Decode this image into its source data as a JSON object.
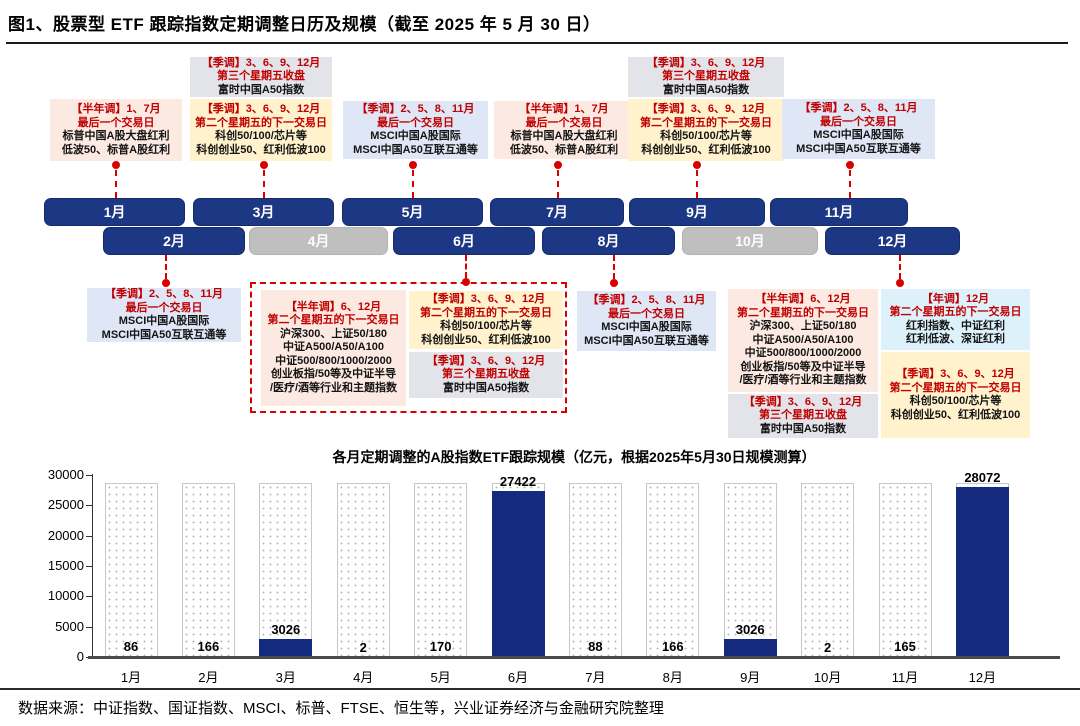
{
  "title": "图1、股票型 ETF 跟踪指数定期调整日历及规模（截至 2025 年 5 月 30 日）",
  "footer": {
    "source_text": "数据来源：中证指数、国证指数、MSCI、标普、FTSE、恒生等，兴业证券经济与金融研究院整理"
  },
  "colors": {
    "navy_month": "#1c3783",
    "navy_bar": "#132a7e",
    "dimmed_month": "#bfbfbf",
    "red_accent": "#d90000",
    "red_text": "#c00000",
    "palette": {
      "pink": "#fceae2",
      "yellow": "#fff2cc",
      "blue": "#dfe6f6",
      "gray": "#e3e4ea",
      "cyan": "#ddf1fb"
    }
  },
  "timeline": {
    "months": [
      {
        "label": "1月",
        "dimmed": false
      },
      {
        "label": "2月",
        "dimmed": false
      },
      {
        "label": "3月",
        "dimmed": false
      },
      {
        "label": "4月",
        "dimmed": true
      },
      {
        "label": "5月",
        "dimmed": false
      },
      {
        "label": "6月",
        "dimmed": false
      },
      {
        "label": "7月",
        "dimmed": false
      },
      {
        "label": "8月",
        "dimmed": false
      },
      {
        "label": "9月",
        "dimmed": false
      },
      {
        "label": "10月",
        "dimmed": true
      },
      {
        "label": "11月",
        "dimmed": false
      },
      {
        "label": "12月",
        "dimmed": false
      }
    ]
  },
  "callouts": [
    {
      "id": "pink-1",
      "palette": "pink",
      "lines": [
        {
          "text": "【半年调】1、7月",
          "red": true
        },
        {
          "text": "最后一个交易日",
          "red": true
        },
        {
          "text": "标普中国A股大盘红利",
          "red": false
        },
        {
          "text": "低波50、标普A股红利",
          "red": false
        }
      ]
    },
    {
      "id": "gray-3",
      "palette": "gray",
      "lines": [
        {
          "text": "【季调】3、6、9、12月",
          "red": true
        },
        {
          "text": "第三个星期五收盘",
          "red": true
        },
        {
          "text": "富时中国A50指数",
          "red": false
        }
      ]
    },
    {
      "id": "yellow-3",
      "palette": "yellow",
      "lines": [
        {
          "text": "【季调】3、6、9、12月",
          "red": true
        },
        {
          "text": "第二个星期五的下一交易日",
          "red": true
        },
        {
          "text": "科创50/100/芯片等",
          "red": false
        },
        {
          "text": "科创创业50、红利低波100",
          "red": false
        }
      ]
    },
    {
      "id": "blue-5",
      "palette": "blue",
      "lines": [
        {
          "text": "【季调】2、5、8、11月",
          "red": true
        },
        {
          "text": "最后一个交易日",
          "red": true
        },
        {
          "text": "MSCI中国A股国际",
          "red": false
        },
        {
          "text": "MSCI中国A50互联互通等",
          "red": false
        }
      ]
    },
    {
      "id": "pink-7",
      "palette": "pink",
      "lines": [
        {
          "text": "【半年调】1、7月",
          "red": true
        },
        {
          "text": "最后一个交易日",
          "red": true
        },
        {
          "text": "标普中国A股大盘红利",
          "red": false
        },
        {
          "text": "低波50、标普A股红利",
          "red": false
        }
      ]
    },
    {
      "id": "gray-9",
      "palette": "gray",
      "lines": [
        {
          "text": "【季调】3、6、9、12月",
          "red": true
        },
        {
          "text": "第三个星期五收盘",
          "red": true
        },
        {
          "text": "富时中国A50指数",
          "red": false
        }
      ]
    },
    {
      "id": "yellow-9",
      "palette": "yellow",
      "lines": [
        {
          "text": "【季调】3、6、9、12月",
          "red": true
        },
        {
          "text": "第二个星期五的下一交易日",
          "red": true
        },
        {
          "text": "科创50/100/芯片等",
          "red": false
        },
        {
          "text": "科创创业50、红利低波100",
          "red": false
        }
      ]
    },
    {
      "id": "blue-11",
      "palette": "blue",
      "lines": [
        {
          "text": "【季调】2、5、8、11月",
          "red": true
        },
        {
          "text": "最后一个交易日",
          "red": true
        },
        {
          "text": "MSCI中国A股国际",
          "red": false
        },
        {
          "text": "MSCI中国A50互联互通等",
          "red": false
        }
      ]
    },
    {
      "id": "blue-2",
      "palette": "blue",
      "lines": [
        {
          "text": "【季调】2、5、8、11月",
          "red": true
        },
        {
          "text": "最后一个交易日",
          "red": true
        },
        {
          "text": "MSCI中国A股国际",
          "red": false
        },
        {
          "text": "MSCI中国A50互联互通等",
          "red": false
        }
      ]
    },
    {
      "id": "pink-6",
      "palette": "pink",
      "lines": [
        {
          "text": "【半年调】6、12月",
          "red": true
        },
        {
          "text": "第二个星期五的下一交易日",
          "red": true
        },
        {
          "text": "沪深300、上证50/180",
          "red": false
        },
        {
          "text": "中证A500/A50/A100",
          "red": false
        },
        {
          "text": "中证500/800/1000/2000",
          "red": false
        },
        {
          "text": "创业板指/50等及中证半导",
          "red": false
        },
        {
          "text": "/医疗/酒等行业和主题指数",
          "red": false
        }
      ]
    },
    {
      "id": "yellow-6",
      "palette": "yellow",
      "lines": [
        {
          "text": "【季调】3、6、9、12月",
          "red": true
        },
        {
          "text": "第二个星期五的下一交易日",
          "red": true
        },
        {
          "text": "科创50/100/芯片等",
          "red": false
        },
        {
          "text": "科创创业50、红利低波100",
          "red": false
        }
      ]
    },
    {
      "id": "gray-6",
      "palette": "gray",
      "lines": [
        {
          "text": "【季调】3、6、9、12月",
          "red": true
        },
        {
          "text": "第三个星期五收盘",
          "red": true
        },
        {
          "text": "富时中国A50指数",
          "red": false
        }
      ]
    },
    {
      "id": "blue-8",
      "palette": "blue",
      "lines": [
        {
          "text": "【季调】2、5、8、11月",
          "red": true
        },
        {
          "text": "最后一个交易日",
          "red": true
        },
        {
          "text": "MSCI中国A股国际",
          "red": false
        },
        {
          "text": "MSCI中国A50互联互通等",
          "red": false
        }
      ]
    },
    {
      "id": "pink-12",
      "palette": "pink",
      "lines": [
        {
          "text": "【半年调】6、12月",
          "red": true
        },
        {
          "text": "第二个星期五的下一交易日",
          "red": true
        },
        {
          "text": "沪深300、上证50/180",
          "red": false
        },
        {
          "text": "中证A500/A50/A100",
          "red": false
        },
        {
          "text": "中证500/800/1000/2000",
          "red": false
        },
        {
          "text": "创业板指/50等及中证半导",
          "red": false
        },
        {
          "text": "/医疗/酒等行业和主题指数",
          "red": false
        }
      ]
    },
    {
      "id": "gray-12",
      "palette": "gray",
      "lines": [
        {
          "text": "【季调】3、6、9、12月",
          "red": true
        },
        {
          "text": "第三个星期五收盘",
          "red": true
        },
        {
          "text": "富时中国A50指数",
          "red": false
        }
      ]
    },
    {
      "id": "cyan-12",
      "palette": "cyan",
      "lines": [
        {
          "text": "【年调】12月",
          "red": true
        },
        {
          "text": "第二个星期五的下一交易日",
          "red": true
        },
        {
          "text": "红利指数、中证红利",
          "red": false
        },
        {
          "text": "红利低波、深证红利",
          "red": false
        }
      ]
    },
    {
      "id": "yellow-12",
      "palette": "yellow",
      "lines": [
        {
          "text": "【季调】3、6、9、12月",
          "red": true
        },
        {
          "text": "第二个星期五的下一交易日",
          "red": true
        },
        {
          "text": "科创50/100/芯片等",
          "red": false
        },
        {
          "text": "科创创业50、红利低波100",
          "red": false
        }
      ]
    }
  ],
  "chart_data": {
    "type": "bar",
    "title": "各月定期调整的A股指数ETF跟踪规模（亿元，根据2025年5月30日规模测算）",
    "categories": [
      "1月",
      "2月",
      "3月",
      "4月",
      "5月",
      "6月",
      "7月",
      "8月",
      "9月",
      "10月",
      "11月",
      "12月"
    ],
    "values": [
      86,
      166,
      3026,
      2,
      170,
      27422,
      88,
      166,
      3026,
      2,
      165,
      28072
    ],
    "data_labels": [
      "86",
      "166",
      "3026",
      "2",
      "170",
      "27422",
      "88",
      "166",
      "3026",
      "2",
      "165",
      "28072"
    ],
    "background_bar_value": 28600,
    "xlabel": "",
    "ylabel": "",
    "ylim": [
      0,
      30000
    ],
    "yticks": [
      0,
      5000,
      10000,
      15000,
      20000,
      25000,
      30000
    ],
    "grid": false,
    "legend": false
  }
}
